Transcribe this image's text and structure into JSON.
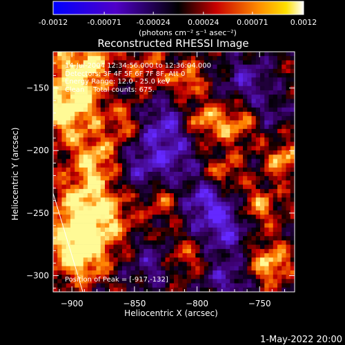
{
  "colorbar": {
    "ticks": [
      "-0.0012",
      "-0.00071",
      "-0.00024",
      "0.00024",
      "0.00071",
      "0.0012"
    ],
    "unit_label": "(photons cm⁻² s⁻¹ asec⁻²)"
  },
  "chart_data": {
    "type": "heatmap",
    "title": "Reconstructed RHESSI Image",
    "xlabel": "Heliocentric X (arcsec)",
    "ylabel": "Heliocentric Y (arcsec)",
    "xlim": [
      -915,
      -722
    ],
    "ylim": [
      -313,
      -121
    ],
    "xticks": [
      -900,
      -850,
      -800,
      -750
    ],
    "yticks": [
      -150,
      -200,
      -250,
      -300
    ],
    "color_range": [
      -0.0012,
      0.0012
    ],
    "peak": [
      -917,
      -132
    ]
  },
  "annotations": {
    "time_range": "14-Jul-2004 12:34:56.000 to 12:36:04.000",
    "detectors": "Detectors: 3F 4F 5F 6F 7F 8F, Att 0",
    "energy": "Energy Range: 12.0 - 25.0 keV",
    "method": "Clean    Total counts: 675.",
    "peak_label": "Position of Peak = [-917,-132]"
  },
  "footer_date": "1-May-2022 20:00"
}
